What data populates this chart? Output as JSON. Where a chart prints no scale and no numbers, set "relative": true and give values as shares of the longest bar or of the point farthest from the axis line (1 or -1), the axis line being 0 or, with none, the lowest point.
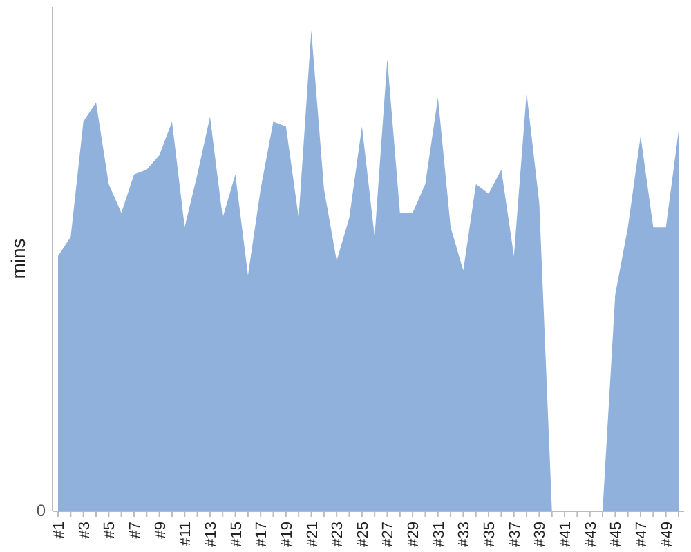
{
  "chart_data": {
    "type": "area",
    "ylabel": "mins",
    "relative": true,
    "annotations": [
      "0"
    ],
    "categories": [
      "#1",
      null,
      "#3",
      null,
      "#5",
      null,
      "#7",
      null,
      "#9",
      null,
      "#11",
      null,
      "#13",
      null,
      "#15",
      null,
      "#17",
      null,
      "#19",
      null,
      "#21",
      null,
      "#23",
      null,
      "#25",
      null,
      "#27",
      null,
      "#29",
      null,
      "#31",
      null,
      "#33",
      null,
      "#35",
      null,
      "#37",
      null,
      "#39",
      null,
      "#41",
      null,
      "#43",
      null,
      "#45",
      null,
      "#47",
      null,
      "#49",
      null
    ],
    "series": [
      {
        "color": "#8fb1db",
        "values": [
          0.53,
          0.57,
          0.81,
          0.85,
          0.68,
          0.62,
          0.7,
          0.71,
          0.74,
          0.81,
          0.59,
          0.7,
          0.82,
          0.61,
          0.7,
          0.49,
          0.67,
          0.81,
          0.8,
          0.61,
          1,
          0.67,
          0.52,
          0.61,
          0.8,
          0.57,
          0.94,
          0.62,
          0.62,
          0.68,
          0.86,
          0.59,
          0.5,
          0.68,
          0.66,
          0.71,
          0.53,
          0.87,
          0.64,
          0,
          0,
          0,
          0,
          0,
          0.45,
          0.59,
          0.78,
          0.59,
          0.59,
          0.79
        ]
      }
    ]
  }
}
